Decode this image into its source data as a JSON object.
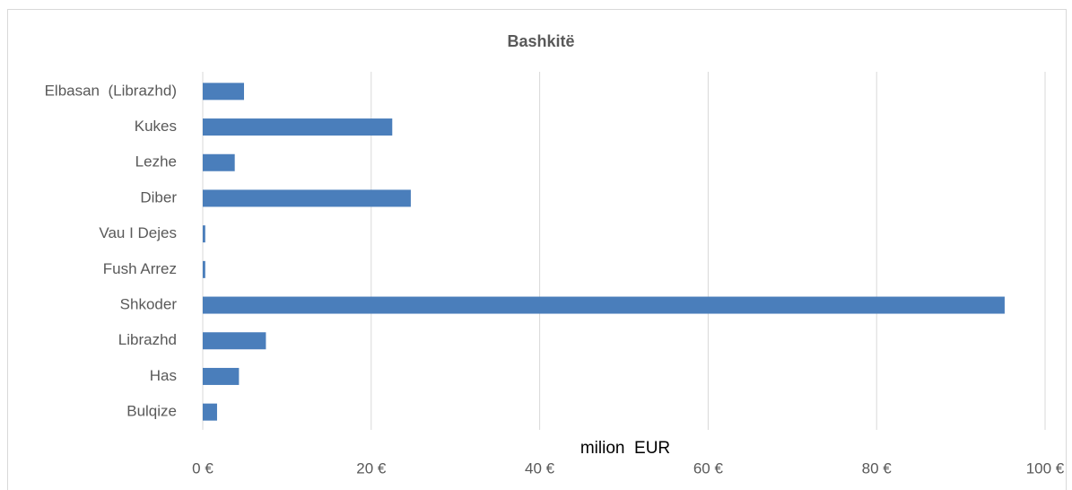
{
  "chart_data": {
    "type": "barh",
    "title": "Bashkitë",
    "x_label": "milion  EUR",
    "categories": [
      "Elbasan  (Librazhd)",
      "Kukes",
      "Lezhe",
      "Diber",
      "Vau I Dejes",
      "Fush Arrez",
      "Shkoder",
      "Librazhd",
      "Has",
      "Bulqize"
    ],
    "values": [
      4.9,
      22.5,
      3.8,
      24.7,
      0.3,
      0.3,
      95.2,
      7.5,
      4.3,
      1.7
    ],
    "color": "#4a7ebb",
    "xlim": [
      0,
      100
    ],
    "xticks": [
      {
        "value": 0,
        "label": "0 €"
      },
      {
        "value": 20,
        "label": "20 €"
      },
      {
        "value": 40,
        "label": "40 €"
      },
      {
        "value": 60,
        "label": "60 €"
      },
      {
        "value": 80,
        "label": "80 €"
      },
      {
        "value": 100,
        "label": "100 €"
      }
    ],
    "grid": true
  }
}
